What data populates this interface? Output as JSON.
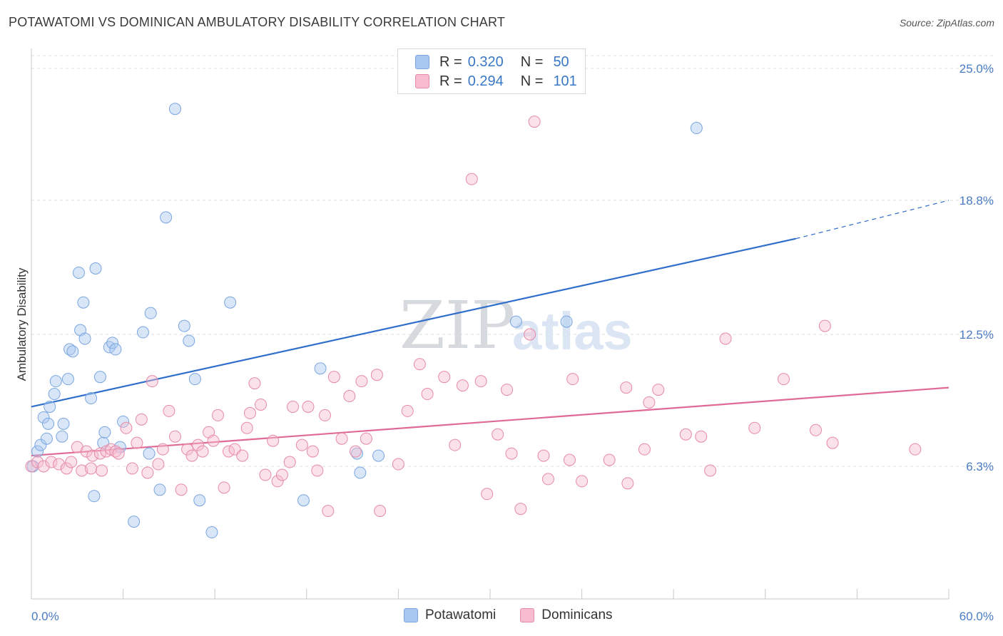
{
  "header": {
    "title": "POTAWATOMI VS DOMINICAN AMBULATORY DISABILITY CORRELATION CHART",
    "source": "Source: ZipAtlas.com"
  },
  "watermark": {
    "zip": "ZIP",
    "atlas": "atlas"
  },
  "legend": {
    "rows": [
      {
        "r_label": "R =",
        "r_value": "0.320",
        "n_label": "N =",
        "n_value": "50",
        "color": "#a9c8f0",
        "border": "#7aa6df"
      },
      {
        "r_label": "R =",
        "r_value": "0.294",
        "n_label": "N =",
        "n_value": "101",
        "color": "#f7bcd0",
        "border": "#e58aa9"
      }
    ]
  },
  "bottom_legend": [
    {
      "label": "Potawatomi",
      "color": "#a9c8f0",
      "border": "#7aa6df"
    },
    {
      "label": "Dominicans",
      "color": "#f7bcd0",
      "border": "#e58aa9"
    }
  ],
  "chart_data": {
    "type": "scatter",
    "title": "POTAWATOMI VS DOMINICAN AMBULATORY DISABILITY CORRELATION CHART",
    "xlabel": "",
    "ylabel": "Ambulatory Disability",
    "xlim": [
      0,
      60
    ],
    "ylim": [
      0,
      26.5
    ],
    "x_tick_labels": [
      "0.0%",
      "60.0%"
    ],
    "y_ticks": [
      6.3,
      12.5,
      18.8,
      25.0
    ],
    "y_tick_labels": [
      "6.3%",
      "12.5%",
      "18.8%",
      "25.0%"
    ],
    "grid": true,
    "legend_placement": "top-center",
    "series": [
      {
        "name": "Potawatomi",
        "color": "#7aa6df",
        "fill": "#a9c8f0",
        "line_color": "#2f6fcb",
        "trend": {
          "x": [
            0,
            50
          ],
          "y": [
            9.1,
            17.0
          ],
          "dash_to": [
            60,
            18.8
          ]
        },
        "points": [
          [
            0.1,
            6.3
          ],
          [
            0.4,
            7.0
          ],
          [
            0.6,
            7.3
          ],
          [
            0.8,
            8.6
          ],
          [
            1.0,
            7.6
          ],
          [
            1.1,
            8.3
          ],
          [
            1.2,
            9.1
          ],
          [
            1.5,
            9.7
          ],
          [
            1.6,
            10.3
          ],
          [
            2.0,
            7.7
          ],
          [
            2.1,
            8.3
          ],
          [
            2.4,
            10.4
          ],
          [
            2.5,
            11.8
          ],
          [
            2.7,
            11.7
          ],
          [
            3.1,
            15.4
          ],
          [
            3.2,
            12.7
          ],
          [
            3.4,
            14.0
          ],
          [
            3.5,
            12.3
          ],
          [
            3.9,
            9.5
          ],
          [
            4.1,
            4.9
          ],
          [
            4.2,
            15.6
          ],
          [
            4.5,
            10.5
          ],
          [
            4.7,
            7.4
          ],
          [
            4.8,
            7.9
          ],
          [
            5.1,
            11.9
          ],
          [
            5.3,
            12.1
          ],
          [
            5.5,
            11.8
          ],
          [
            5.8,
            7.2
          ],
          [
            6.0,
            8.4
          ],
          [
            6.7,
            3.7
          ],
          [
            7.3,
            12.6
          ],
          [
            7.7,
            6.9
          ],
          [
            7.8,
            13.5
          ],
          [
            8.4,
            5.2
          ],
          [
            8.8,
            18.0
          ],
          [
            9.4,
            23.1
          ],
          [
            10.0,
            12.9
          ],
          [
            10.3,
            12.2
          ],
          [
            10.7,
            10.4
          ],
          [
            11.0,
            4.7
          ],
          [
            11.8,
            3.2
          ],
          [
            13.0,
            14.0
          ],
          [
            17.8,
            4.7
          ],
          [
            18.9,
            10.9
          ],
          [
            21.3,
            6.9
          ],
          [
            21.5,
            6.0
          ],
          [
            22.7,
            6.8
          ],
          [
            31.7,
            13.1
          ],
          [
            35.0,
            13.1
          ],
          [
            43.5,
            22.2
          ]
        ]
      },
      {
        "name": "Dominicans",
        "color": "#e58aa9",
        "fill": "#f7bcd0",
        "line_color": "#e06a97",
        "trend": {
          "x": [
            0,
            60
          ],
          "y": [
            6.8,
            10.0
          ]
        },
        "points": [
          [
            0.0,
            6.3
          ],
          [
            0.4,
            6.5
          ],
          [
            0.8,
            6.3
          ],
          [
            1.3,
            6.5
          ],
          [
            1.8,
            6.4
          ],
          [
            2.3,
            6.2
          ],
          [
            2.6,
            6.5
          ],
          [
            3.0,
            7.2
          ],
          [
            3.3,
            6.1
          ],
          [
            3.6,
            7.0
          ],
          [
            3.9,
            6.2
          ],
          [
            4.0,
            6.8
          ],
          [
            4.5,
            6.9
          ],
          [
            4.6,
            6.1
          ],
          [
            4.9,
            7.0
          ],
          [
            5.2,
            7.1
          ],
          [
            5.5,
            7.0
          ],
          [
            5.7,
            6.9
          ],
          [
            6.2,
            8.1
          ],
          [
            6.6,
            6.2
          ],
          [
            6.9,
            7.4
          ],
          [
            7.2,
            8.5
          ],
          [
            7.6,
            6.0
          ],
          [
            7.9,
            10.3
          ],
          [
            8.3,
            6.4
          ],
          [
            8.6,
            7.1
          ],
          [
            9.0,
            8.9
          ],
          [
            9.4,
            7.7
          ],
          [
            9.8,
            5.2
          ],
          [
            10.2,
            7.1
          ],
          [
            10.5,
            6.8
          ],
          [
            10.9,
            7.3
          ],
          [
            11.2,
            7.0
          ],
          [
            11.6,
            7.9
          ],
          [
            11.9,
            7.5
          ],
          [
            12.2,
            8.7
          ],
          [
            12.6,
            5.3
          ],
          [
            12.9,
            7.0
          ],
          [
            13.3,
            7.1
          ],
          [
            13.8,
            6.8
          ],
          [
            14.1,
            8.1
          ],
          [
            14.3,
            8.8
          ],
          [
            14.6,
            10.2
          ],
          [
            15.0,
            9.2
          ],
          [
            15.3,
            5.9
          ],
          [
            15.8,
            7.5
          ],
          [
            16.1,
            5.6
          ],
          [
            16.4,
            5.9
          ],
          [
            16.9,
            6.5
          ],
          [
            17.1,
            9.1
          ],
          [
            17.7,
            7.3
          ],
          [
            18.1,
            9.1
          ],
          [
            18.4,
            7.0
          ],
          [
            18.7,
            6.1
          ],
          [
            19.2,
            8.7
          ],
          [
            19.4,
            4.2
          ],
          [
            19.8,
            10.5
          ],
          [
            20.3,
            7.6
          ],
          [
            20.8,
            9.6
          ],
          [
            21.2,
            7.0
          ],
          [
            21.6,
            10.3
          ],
          [
            21.9,
            7.6
          ],
          [
            22.6,
            10.6
          ],
          [
            22.8,
            4.2
          ],
          [
            24.0,
            6.4
          ],
          [
            24.6,
            8.9
          ],
          [
            25.4,
            11.1
          ],
          [
            25.9,
            9.7
          ],
          [
            27.0,
            10.5
          ],
          [
            27.7,
            7.3
          ],
          [
            28.2,
            10.1
          ],
          [
            28.8,
            19.8
          ],
          [
            29.4,
            10.3
          ],
          [
            29.8,
            5.0
          ],
          [
            30.5,
            7.8
          ],
          [
            31.1,
            9.9
          ],
          [
            31.4,
            6.9
          ],
          [
            32.0,
            4.3
          ],
          [
            32.6,
            12.5
          ],
          [
            32.9,
            22.5
          ],
          [
            33.5,
            6.8
          ],
          [
            33.8,
            5.7
          ],
          [
            35.2,
            6.6
          ],
          [
            35.4,
            10.4
          ],
          [
            36.0,
            5.6
          ],
          [
            37.8,
            6.6
          ],
          [
            38.9,
            10.0
          ],
          [
            39.0,
            5.5
          ],
          [
            40.1,
            7.1
          ],
          [
            40.4,
            9.3
          ],
          [
            41.0,
            9.9
          ],
          [
            42.8,
            7.8
          ],
          [
            44.4,
            6.1
          ],
          [
            43.8,
            7.7
          ],
          [
            45.4,
            12.3
          ],
          [
            47.3,
            8.1
          ],
          [
            49.2,
            10.4
          ],
          [
            51.3,
            8.0
          ],
          [
            51.9,
            12.9
          ],
          [
            52.4,
            7.4
          ],
          [
            57.8,
            7.1
          ]
        ]
      }
    ]
  }
}
